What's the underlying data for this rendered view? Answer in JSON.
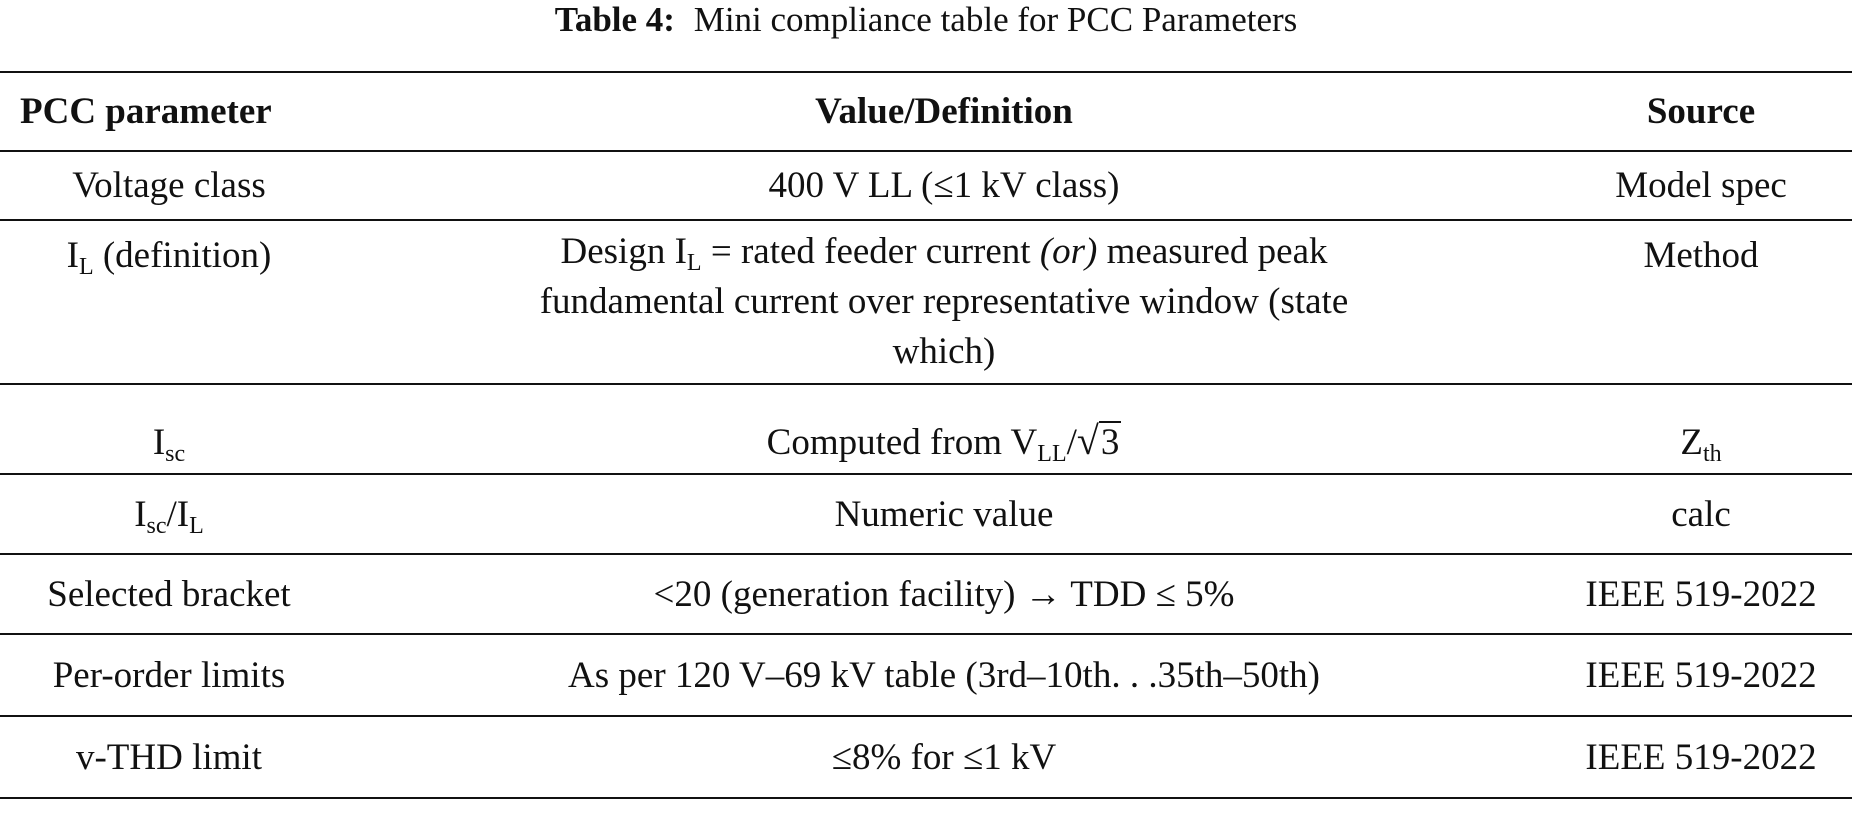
{
  "caption": {
    "label": "Table 4:",
    "text": "Mini compliance table for PCC Parameters"
  },
  "header": {
    "col1": "PCC parameter",
    "col2": "Value/Definition",
    "col3": "Source"
  },
  "rows": {
    "voltage": {
      "param": "Voltage class",
      "value": "400 V LL (≤1 kV class)",
      "source": "Model spec"
    },
    "il": {
      "param_main": "I",
      "param_sub": "L",
      "param_rest": " (definition)",
      "value_pre": "Design I",
      "value_sub": "L",
      "value_mid": " = rated feeder current ",
      "value_ital": "(or)",
      "value_post": " measured peak fundamental current over representative window (state which)",
      "source": "Method"
    },
    "isc": {
      "param_main": "I",
      "param_sub": "sc",
      "value_pre": "Computed from V",
      "value_sub": "LL",
      "value_slash": "/",
      "value_sqrt_sym": "√",
      "value_sqrt_arg": "3",
      "source_main": "Z",
      "source_sub": "th"
    },
    "ratio": {
      "param_a": "I",
      "param_a_sub": "sc",
      "param_slash": "/I",
      "param_b_sub": "L",
      "value": "Numeric value",
      "source": "calc"
    },
    "bracket": {
      "param": "Selected bracket",
      "value": "<20 (generation facility) → TDD ≤ 5%",
      "source": "IEEE 519-2022"
    },
    "order": {
      "param": "Per-order limits",
      "value": "As per 120 V–69 kV table (3rd–10th. . .35th–50th)",
      "source": "IEEE 519-2022"
    },
    "vthd": {
      "param": "v-THD limit",
      "value": "≤8% for ≤1 kV",
      "source": "IEEE 519-2022"
    }
  }
}
